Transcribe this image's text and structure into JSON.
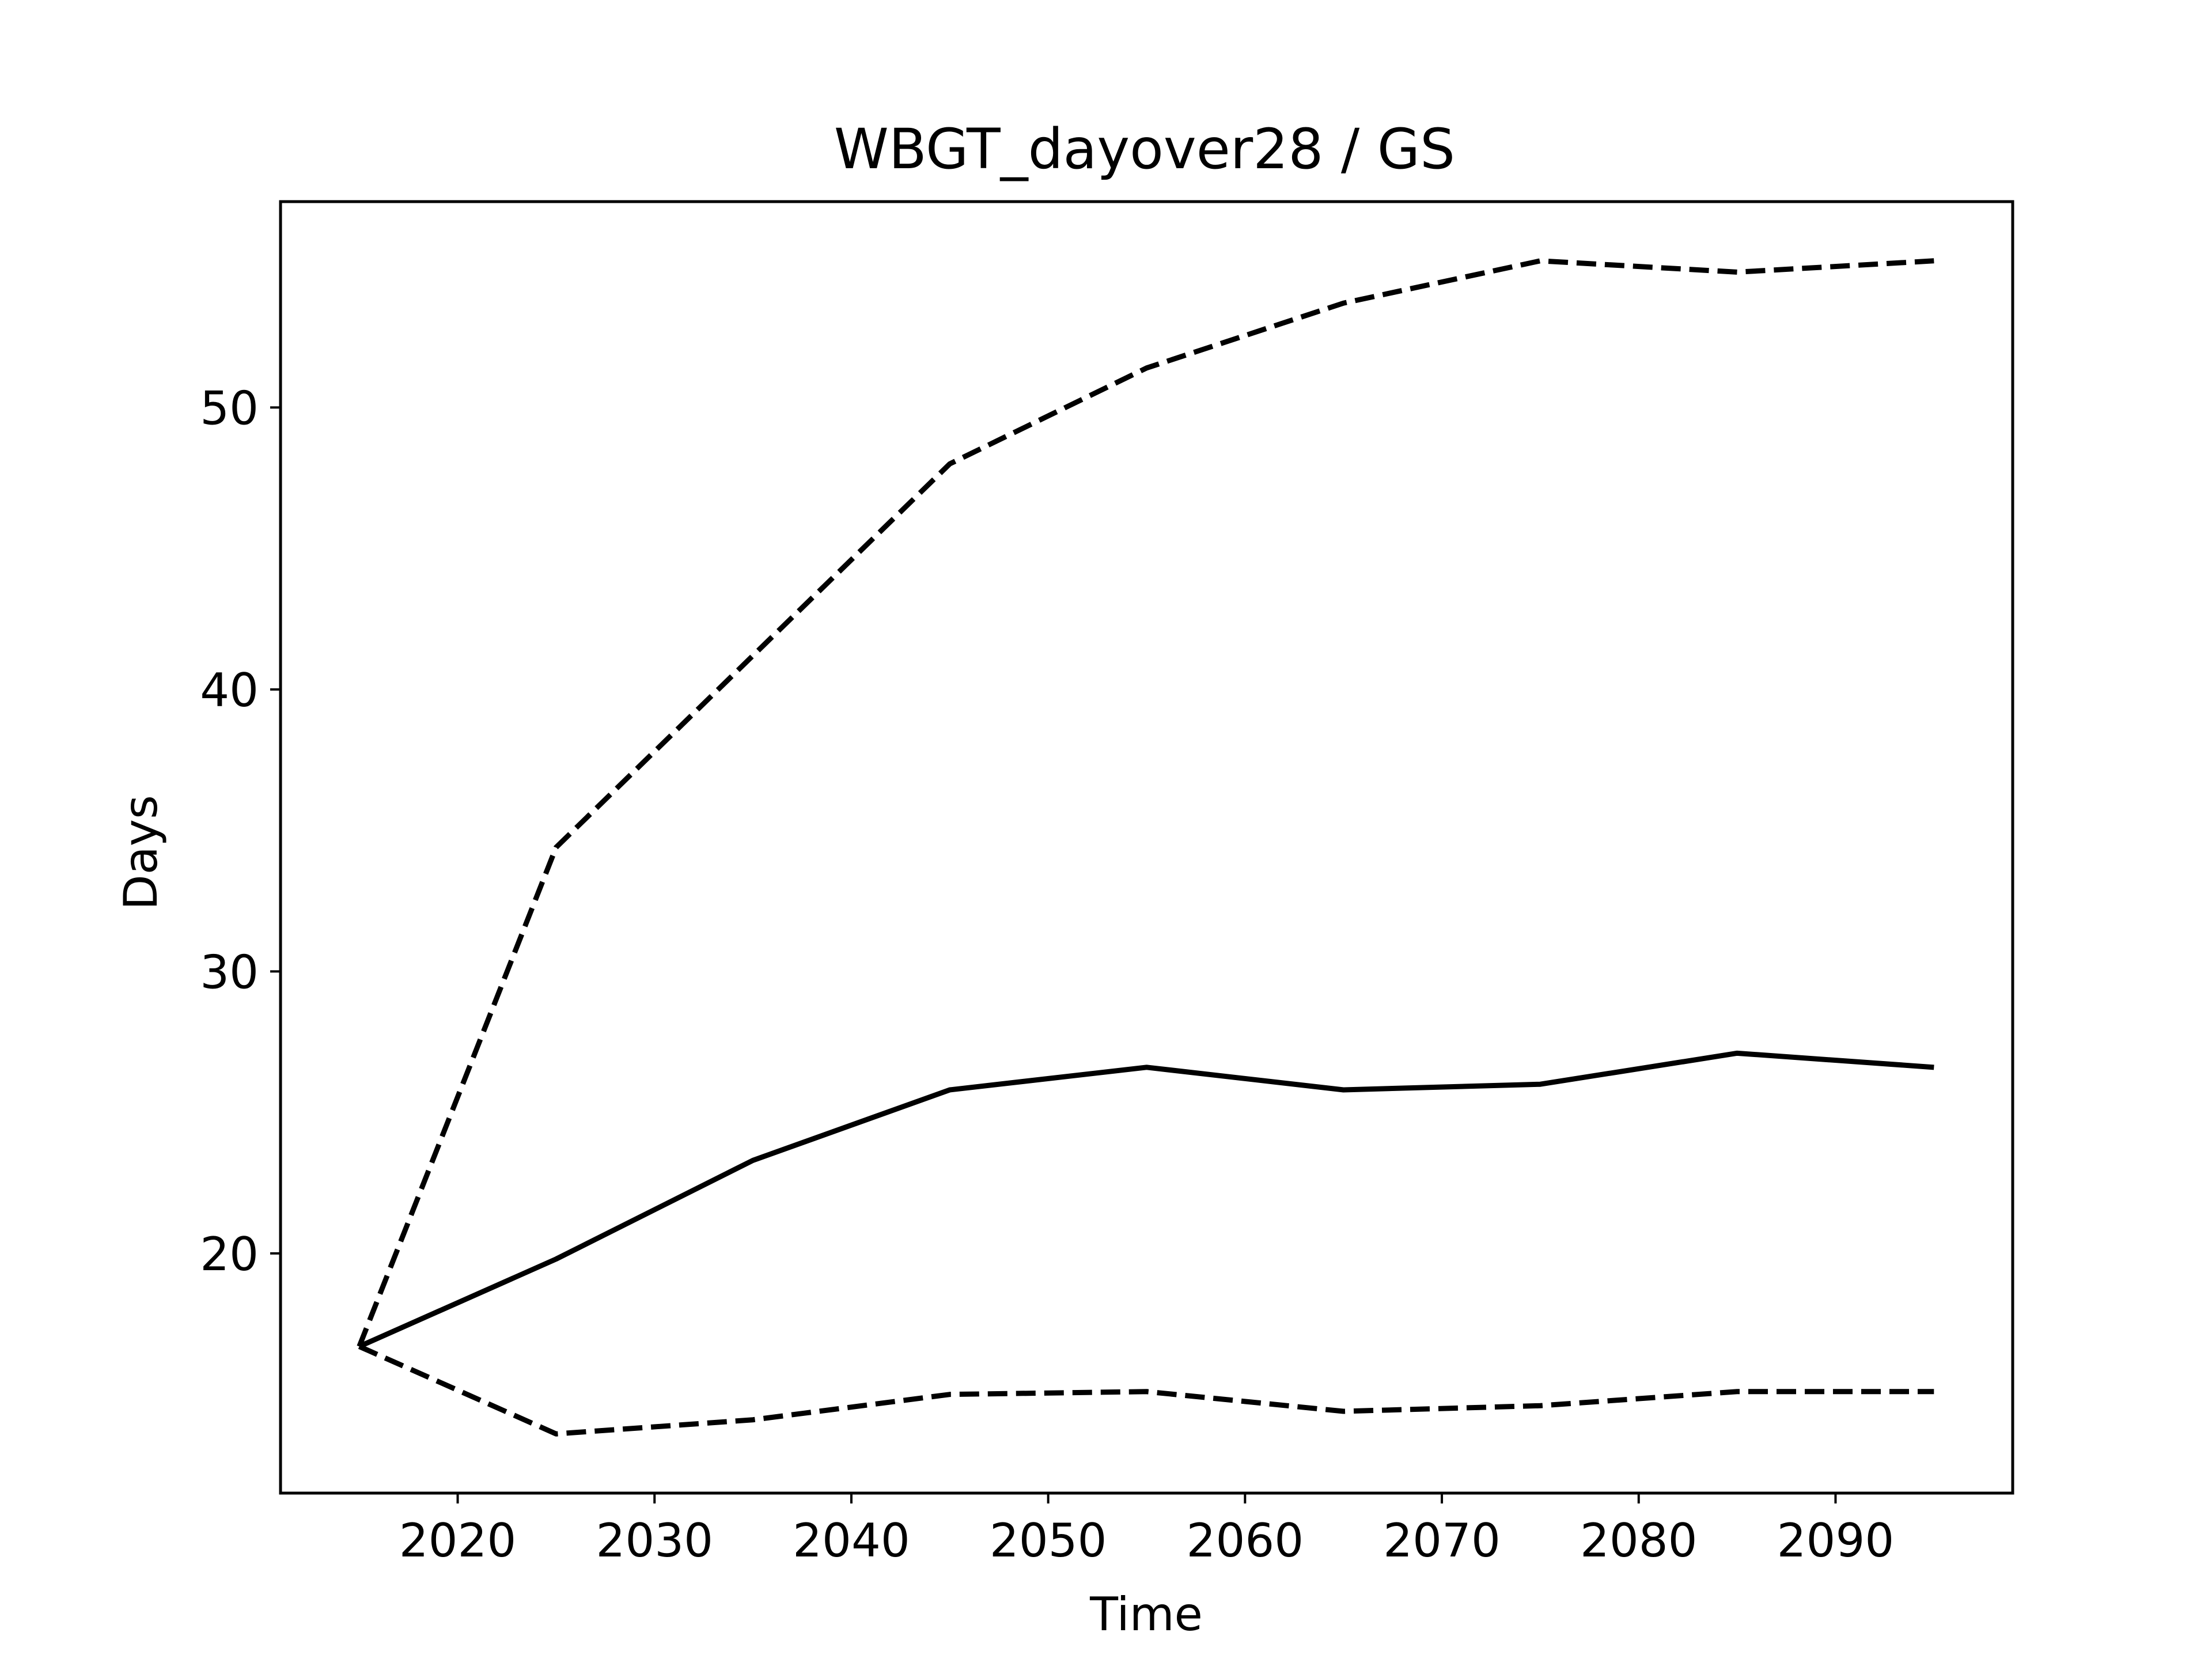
{
  "chart_data": {
    "type": "line",
    "title": "WBGT_dayover28 / GS",
    "xlabel": "Time",
    "ylabel": "Days",
    "xlim": [
      2011,
      2099
    ],
    "ylim": [
      11.5,
      57.3
    ],
    "x_ticks": [
      "2020",
      "2030",
      "2040",
      "2050",
      "2060",
      "2070",
      "2080",
      "2090"
    ],
    "y_ticks": [
      "20",
      "30",
      "40",
      "50"
    ],
    "grid": false,
    "legend": "none",
    "x": [
      2015,
      2025,
      2035,
      2045,
      2055,
      2065,
      2075,
      2085,
      2095
    ],
    "series": [
      {
        "style": "solid",
        "color": "#000000",
        "values": [
          16.7,
          19.8,
          23.3,
          25.8,
          26.6,
          25.8,
          26.0,
          27.1,
          26.6
        ]
      },
      {
        "style": "dashed",
        "color": "#000000",
        "values": [
          16.7,
          34.4,
          41.2,
          48.0,
          51.4,
          53.7,
          55.2,
          54.8,
          55.2
        ]
      },
      {
        "style": "dashed",
        "color": "#000000",
        "values": [
          16.7,
          13.6,
          14.1,
          15.0,
          15.1,
          14.4,
          14.6,
          15.1,
          15.1
        ]
      }
    ]
  }
}
